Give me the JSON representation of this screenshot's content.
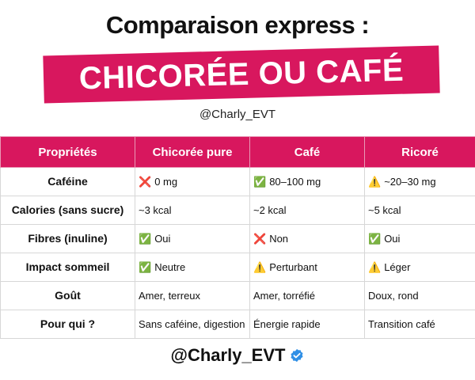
{
  "header": {
    "title": "Comparaison express :",
    "banner": "CHICORÉE OU CAFÉ",
    "handle": "@Charly_EVT"
  },
  "table": {
    "columns": [
      "Propriétés",
      "Chicorée pure",
      "Café",
      "Ricoré"
    ],
    "rows": [
      [
        "Caféine",
        {
          "icon": "❌",
          "text": "0 mg"
        },
        {
          "icon": "✅",
          "text": "80–100 mg"
        },
        {
          "icon": "⚠️",
          "text": "~20–30 mg"
        }
      ],
      [
        "Calories (sans sucre)",
        "~3 kcal",
        "~2 kcal",
        "~5 kcal"
      ],
      [
        "Fibres (inuline)",
        {
          "icon": "✅",
          "text": "Oui"
        },
        {
          "icon": "❌",
          "text": "Non"
        },
        {
          "icon": "✅",
          "text": "Oui"
        }
      ],
      [
        "Impact sommeil",
        {
          "icon": "✅",
          "text": "Neutre"
        },
        {
          "icon": "⚠️",
          "text": "Perturbant"
        },
        {
          "icon": "⚠️",
          "text": "Léger"
        }
      ],
      [
        "Goût",
        "Amer, terreux",
        "Amer, torréfié",
        "Doux, rond"
      ],
      [
        "Pour qui ?",
        "Sans caféine, digestion",
        "Énergie rapide",
        "Transition café"
      ]
    ]
  },
  "footer": {
    "handle": "@Charly_EVT"
  }
}
